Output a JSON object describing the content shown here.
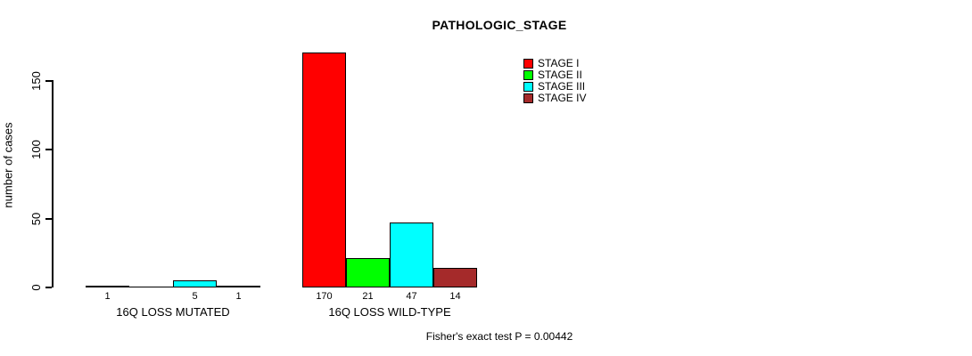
{
  "window": {
    "background_color": "#ffffff",
    "text_color": "#000000"
  },
  "chart_data": {
    "type": "bar",
    "title": "PATHOLOGIC_STAGE",
    "ylabel": "number of cases",
    "xlabel": "",
    "yticks": [
      0,
      50,
      100,
      150
    ],
    "ylim": [
      0,
      170
    ],
    "grid": false,
    "legend_position": "top-right",
    "categories": [
      "16Q LOSS MUTATED",
      "16Q LOSS WILD-TYPE"
    ],
    "series": [
      {
        "name": "STAGE I",
        "color": "#ff0000",
        "values": [
          1,
          170
        ]
      },
      {
        "name": "STAGE II",
        "color": "#00ff00",
        "values": [
          0,
          21
        ]
      },
      {
        "name": "STAGE III",
        "color": "#00ffff",
        "values": [
          5,
          47
        ]
      },
      {
        "name": "STAGE IV",
        "color": "#a52a2a",
        "values": [
          1,
          14
        ]
      }
    ],
    "bar_value_labels": [
      "1",
      "",
      "5",
      "1",
      "170",
      "21",
      "47",
      "14"
    ],
    "footnote": "Fisher's exact test P = 0.00442"
  }
}
